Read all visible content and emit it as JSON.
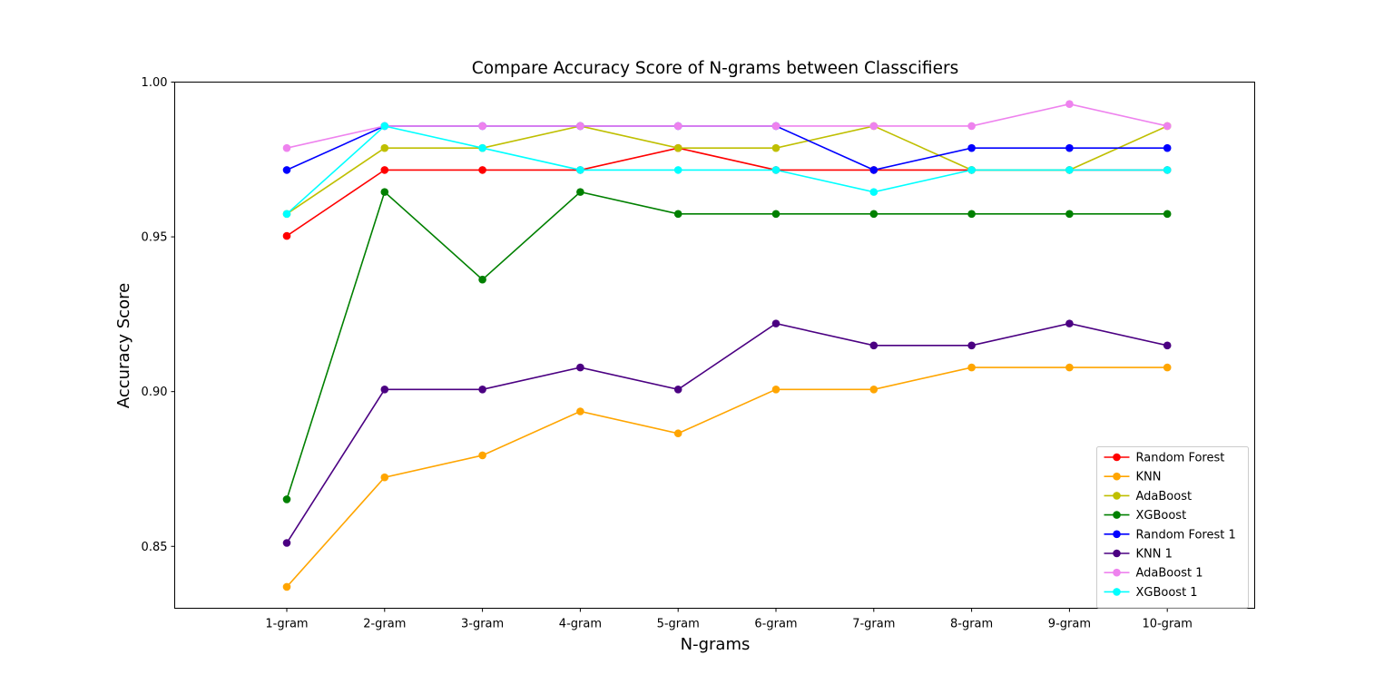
{
  "chart_data": {
    "type": "line",
    "title": "Compare Accuracy Score of N-grams between Classcifiers",
    "xlabel": "N-grams",
    "ylabel": "Accuracy Score",
    "categories": [
      "1-gram",
      "2-gram",
      "3-gram",
      "4-gram",
      "5-gram",
      "6-gram",
      "7-gram",
      "8-gram",
      "9-gram",
      "10-gram"
    ],
    "ylim": [
      0.83,
      1.0
    ],
    "yticks": [
      {
        "value": 0.85,
        "label": "0.85"
      },
      {
        "value": 0.9,
        "label": "0.90"
      },
      {
        "value": 0.95,
        "label": "0.95"
      },
      {
        "value": 1.0,
        "label": "1.00"
      }
    ],
    "grid": false,
    "legend_position": "lower-right",
    "series": [
      {
        "name": "Random Forest",
        "color": "#ff0000",
        "values": [
          0.9503,
          0.9716,
          0.9716,
          0.9716,
          0.9787,
          0.9716,
          0.9716,
          0.9716,
          0.9716,
          0.9716
        ]
      },
      {
        "name": "KNN",
        "color": "#ffa500",
        "values": [
          0.8369,
          0.8723,
          0.8794,
          0.8936,
          0.8865,
          0.9007,
          0.9007,
          0.9078,
          0.9078,
          0.9078
        ]
      },
      {
        "name": "AdaBoost",
        "color": "#bfbf00",
        "values": [
          0.9574,
          0.9787,
          0.9787,
          0.9858,
          0.9787,
          0.9787,
          0.9858,
          0.9716,
          0.9716,
          0.9858
        ]
      },
      {
        "name": "XGBoost",
        "color": "#008000",
        "values": [
          0.8652,
          0.9645,
          0.9362,
          0.9645,
          0.9574,
          0.9574,
          0.9574,
          0.9574,
          0.9574,
          0.9574
        ]
      },
      {
        "name": "Random Forest 1",
        "color": "#0000ff",
        "values": [
          0.9716,
          0.9858,
          0.9858,
          0.9858,
          0.9858,
          0.9858,
          0.9716,
          0.9787,
          0.9787,
          0.9787
        ]
      },
      {
        "name": "KNN 1",
        "color": "#4b0082",
        "values": [
          0.8511,
          0.9007,
          0.9007,
          0.9078,
          0.9007,
          0.922,
          0.9149,
          0.9149,
          0.922,
          0.9149
        ]
      },
      {
        "name": "AdaBoost 1",
        "color": "#ee82ee",
        "values": [
          0.9787,
          0.9858,
          0.9858,
          0.9858,
          0.9858,
          0.9858,
          0.9858,
          0.9858,
          0.9929,
          0.9858
        ]
      },
      {
        "name": "XGBoost 1",
        "color": "#00ffff",
        "values": [
          0.9574,
          0.9858,
          0.9787,
          0.9716,
          0.9716,
          0.9716,
          0.9645,
          0.9716,
          0.9716,
          0.9716
        ]
      }
    ]
  }
}
